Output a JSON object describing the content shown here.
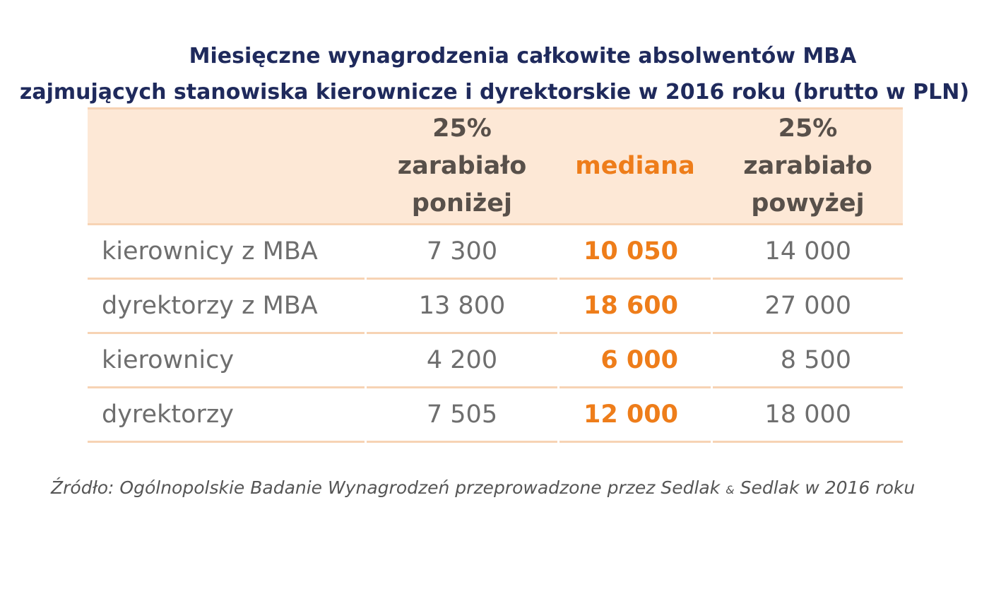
{
  "chart_data": {
    "type": "table",
    "title_line1": "Miesięczne wynagrodzenia całkowite absolwentów MBA",
    "title_line2": "zajmujących stanowiska kierownicze i dyrektorskie w 2016 roku (brutto w PLN)",
    "columns": {
      "low": [
        "25%",
        "zarabiało",
        "poniżej"
      ],
      "median": "mediana",
      "high": [
        "25%",
        "zarabiało",
        "powyżej"
      ]
    },
    "rows": [
      {
        "label": "kierownicy z MBA",
        "low": "7 300",
        "median": "10 050",
        "high": "14 000"
      },
      {
        "label": "dyrektorzy z MBA",
        "low": "13 800",
        "median": "18 600",
        "high": "27 000"
      },
      {
        "label": "kierownicy",
        "low": "4 200",
        "median": "6 000",
        "high": "8 500"
      },
      {
        "label": "dyrektorzy",
        "low": "7 505",
        "median": "12 000",
        "high": "18 000"
      }
    ],
    "source": {
      "prefix": "Źródło: Ogólnopolskie Badanie Wynagrodzeń przeprowadzone przez Sedlak ",
      "amp": "&",
      "suffix": " Sedlak w 2016 roku"
    }
  },
  "colors": {
    "title": "#1f2a5c",
    "header_bg": "#fde8d6",
    "border": "#f7d3b4",
    "median": "#ee7d1a",
    "body_text": "#6e6e6e"
  }
}
